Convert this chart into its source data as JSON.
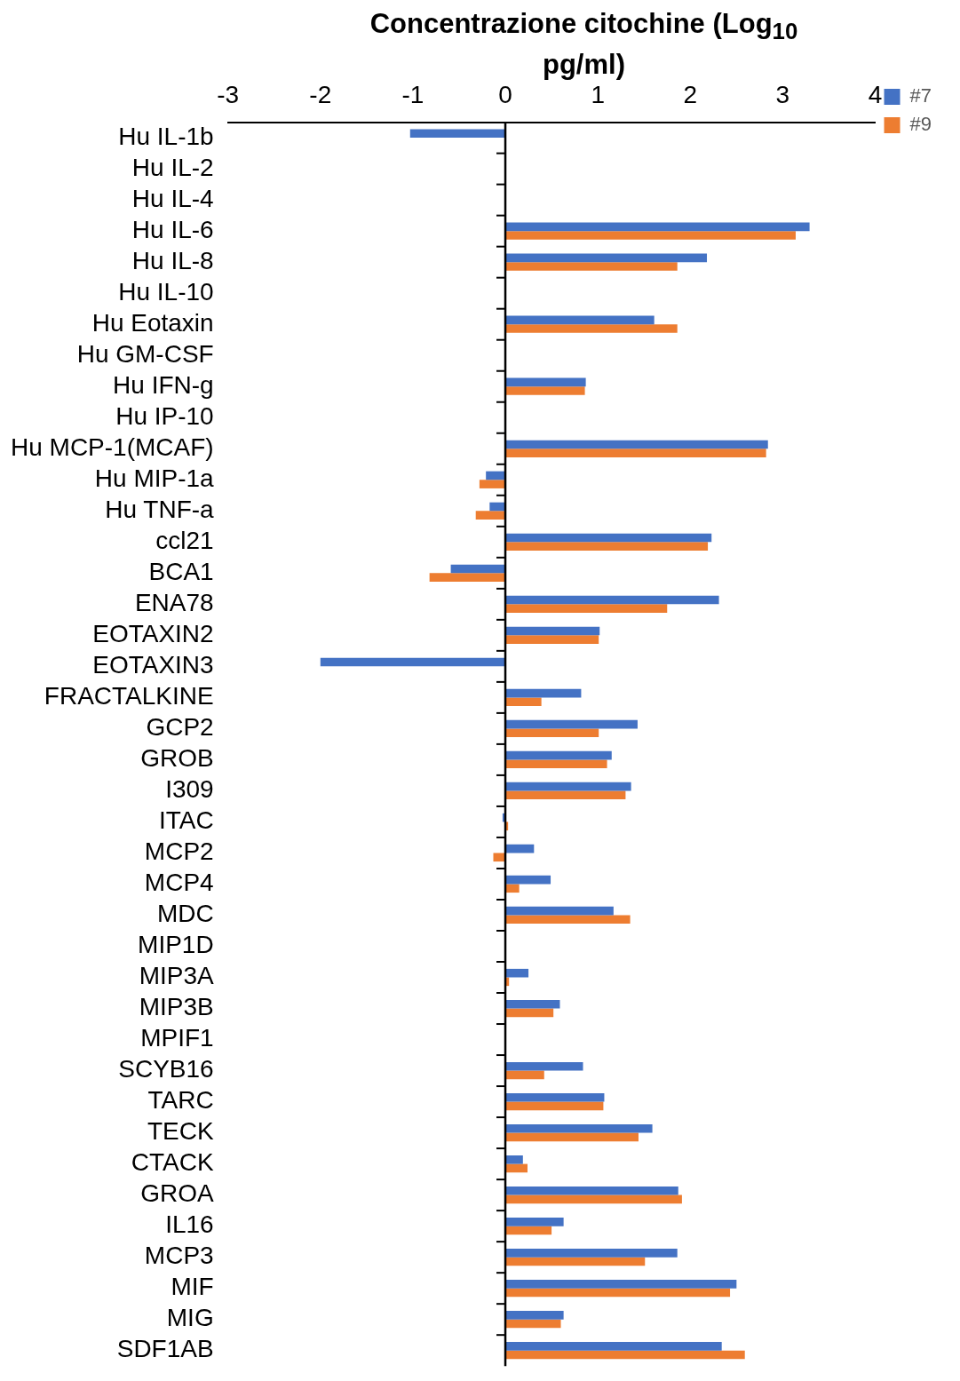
{
  "chart_data": {
    "type": "bar",
    "orientation": "horizontal",
    "xlabel": "Concentrazione citochine (Log$_{10}$ pg/ml)",
    "categories": [
      "Hu IL-1b",
      "Hu IL-2",
      "Hu IL-4",
      "Hu IL-6",
      "Hu IL-8",
      "Hu IL-10",
      "Hu Eotaxin",
      "Hu GM-CSF",
      "Hu IFN-g",
      "Hu IP-10",
      "Hu MCP-1(MCAF)",
      "Hu MIP-1a",
      "Hu TNF-a",
      "ccl21",
      "BCA1",
      "ENA78",
      "EOTAXIN2",
      "EOTAXIN3",
      "FRACTALKINE",
      "GCP2",
      "GROB",
      "I309",
      "ITAC",
      "MCP2",
      "MCP4",
      "MDC",
      "MIP1D",
      "MIP3A",
      "MIP3B",
      "MPIF1",
      "SCYB16",
      "TARC",
      "TECK",
      "CTACK",
      "GROA",
      "IL16",
      "MCP3",
      "MIF",
      "MIG",
      "SDF1AB"
    ],
    "series": [
      {
        "name": "#7",
        "color": "#4472c4",
        "values": [
          -1.03,
          null,
          null,
          3.29,
          2.18,
          null,
          1.61,
          null,
          0.87,
          null,
          2.84,
          -0.21,
          -0.17,
          2.23,
          -0.59,
          2.31,
          1.02,
          -2.0,
          0.82,
          1.43,
          1.15,
          1.36,
          -0.03,
          0.31,
          0.49,
          1.17,
          null,
          0.25,
          0.59,
          null,
          0.84,
          1.07,
          1.59,
          0.19,
          1.87,
          0.63,
          1.86,
          2.5,
          0.63,
          2.34
        ]
      },
      {
        "name": "#9",
        "color": "#ed7d31",
        "values": [
          null,
          null,
          null,
          3.14,
          1.86,
          null,
          1.86,
          null,
          0.86,
          null,
          2.82,
          -0.28,
          -0.32,
          2.19,
          -0.82,
          1.75,
          1.01,
          null,
          0.39,
          1.01,
          1.1,
          1.3,
          0.03,
          -0.13,
          0.15,
          1.35,
          null,
          0.04,
          0.52,
          null,
          0.42,
          1.06,
          1.44,
          0.24,
          1.91,
          0.5,
          1.51,
          2.43,
          0.6,
          2.59
        ]
      }
    ],
    "xlim": [
      -3,
      4
    ],
    "xticks": [
      -3,
      -2,
      -1,
      0,
      1,
      2,
      3,
      4
    ],
    "legend": "top right"
  }
}
